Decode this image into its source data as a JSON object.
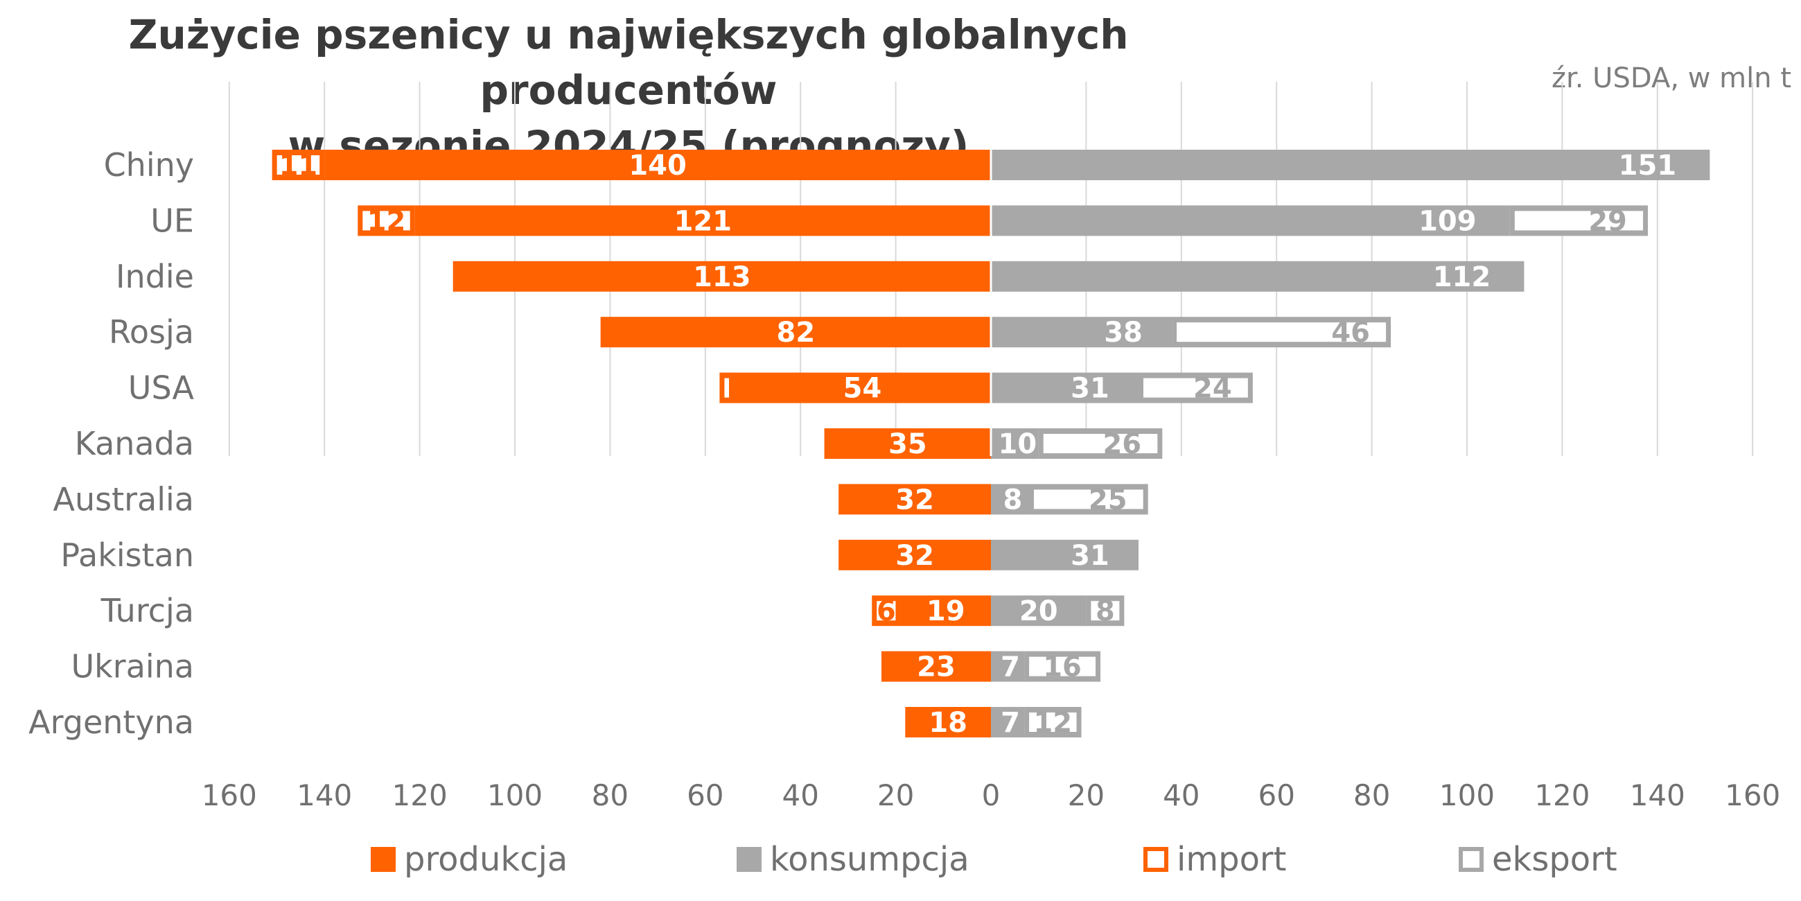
{
  "title": [
    "Zużycie pszenicy u największych globalnych producentów",
    "w sezonie 2024/25 (prognozy)"
  ],
  "source": "źr. USDA, w mln t",
  "colors": {
    "produkcja": "#ff6200",
    "konsumpcja": "#a8a8a8",
    "grid": "#d9d9d9",
    "text": "#707070"
  },
  "chart_data": {
    "type": "bar",
    "orientation": "horizontal-butterfly",
    "categories": [
      "Chiny",
      "UE",
      "Indie",
      "Rosja",
      "USA",
      "Kanada",
      "Australia",
      "Pakistan",
      "Turcja",
      "Ukraina",
      "Argentyna"
    ],
    "series": [
      {
        "name": "produkcja",
        "side": "left",
        "values": [
          140,
          121,
          113,
          82,
          54,
          35,
          32,
          32,
          19,
          23,
          18
        ]
      },
      {
        "name": "konsumpcja",
        "side": "right",
        "values": [
          151,
          109,
          112,
          38,
          31,
          10,
          8,
          31,
          20,
          7,
          7
        ]
      },
      {
        "name": "import",
        "side": "left",
        "values": [
          11,
          12,
          null,
          null,
          3,
          null,
          null,
          null,
          6,
          null,
          null
        ]
      },
      {
        "name": "eksport",
        "side": "right",
        "values": [
          null,
          29,
          null,
          46,
          24,
          26,
          25,
          null,
          8,
          16,
          12
        ]
      }
    ],
    "xticks": [
      "160",
      "140",
      "120",
      "100",
      "80",
      "60",
      "40",
      "20",
      "0",
      "20",
      "40",
      "60",
      "80",
      "100",
      "120",
      "140",
      "160"
    ],
    "xlim": [
      -160,
      160
    ],
    "grid": true,
    "legend_position": "bottom",
    "legend": [
      "produkcja",
      "konsumpcja",
      "import",
      "eksport"
    ]
  }
}
